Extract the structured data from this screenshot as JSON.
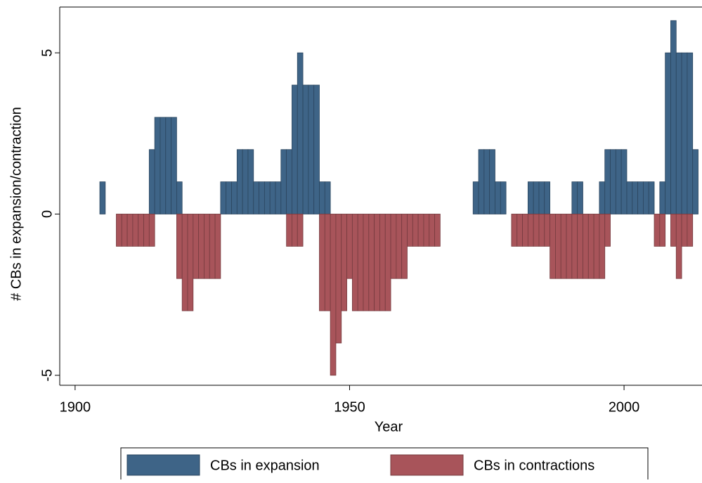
{
  "chart_data": {
    "type": "bar",
    "xlabel": "Year",
    "ylabel": "# CBs in expansion/contraction",
    "xlim": [
      1897.2,
      2014.2
    ],
    "ylim": [
      -5.31,
      6.42
    ],
    "xticks": [
      1900,
      1950,
      2000
    ],
    "yticks": [
      -5,
      0,
      5
    ],
    "grid": false,
    "legend": "bottom",
    "series": [
      {
        "name": "CBs in expansion",
        "color": "#3e6487",
        "x": [
          1905,
          1914,
          1915,
          1916,
          1917,
          1918,
          1919,
          1927,
          1928,
          1929,
          1930,
          1931,
          1932,
          1933,
          1934,
          1935,
          1936,
          1937,
          1938,
          1939,
          1940,
          1941,
          1942,
          1943,
          1944,
          1945,
          1946,
          1973,
          1974,
          1975,
          1976,
          1977,
          1978,
          1983,
          1984,
          1985,
          1986,
          1991,
          1992,
          1996,
          1997,
          1998,
          1999,
          2000,
          2001,
          2002,
          2003,
          2004,
          2005,
          2007,
          2008,
          2009,
          2010,
          2011,
          2012,
          2013
        ],
        "values": [
          1,
          2,
          3,
          3,
          3,
          3,
          1,
          1,
          1,
          1,
          2,
          2,
          2,
          1,
          1,
          1,
          1,
          1,
          2,
          2,
          4,
          5,
          4,
          4,
          4,
          1,
          1,
          1,
          2,
          2,
          2,
          1,
          1,
          1,
          1,
          1,
          1,
          1,
          1,
          1,
          2,
          2,
          2,
          2,
          1,
          1,
          1,
          1,
          1,
          1,
          5,
          6,
          5,
          5,
          5,
          2
        ]
      },
      {
        "name": "CBs in contractions",
        "color": "#a8545a",
        "x": [
          1908,
          1909,
          1910,
          1911,
          1912,
          1913,
          1914,
          1919,
          1920,
          1921,
          1922,
          1923,
          1924,
          1925,
          1926,
          1939,
          1940,
          1941,
          1945,
          1946,
          1947,
          1948,
          1949,
          1950,
          1951,
          1952,
          1953,
          1954,
          1955,
          1956,
          1957,
          1958,
          1959,
          1960,
          1961,
          1962,
          1963,
          1964,
          1965,
          1966,
          1980,
          1981,
          1982,
          1983,
          1984,
          1985,
          1986,
          1987,
          1988,
          1989,
          1990,
          1991,
          1992,
          1993,
          1994,
          1995,
          1996,
          1997,
          2006,
          2007,
          2009,
          2010,
          2011,
          2012
        ],
        "values": [
          -1,
          -1,
          -1,
          -1,
          -1,
          -1,
          -1,
          -2,
          -3,
          -3,
          -2,
          -2,
          -2,
          -2,
          -2,
          -1,
          -1,
          -1,
          -3,
          -3,
          -5,
          -4,
          -3,
          -2,
          -3,
          -3,
          -3,
          -3,
          -3,
          -3,
          -3,
          -2,
          -2,
          -2,
          -1,
          -1,
          -1,
          -1,
          -1,
          -1,
          -1,
          -1,
          -1,
          -1,
          -1,
          -1,
          -1,
          -2,
          -2,
          -2,
          -2,
          -2,
          -2,
          -2,
          -2,
          -2,
          -2,
          -1,
          -1,
          -1,
          -1,
          -2,
          -1,
          -1
        ]
      }
    ]
  }
}
